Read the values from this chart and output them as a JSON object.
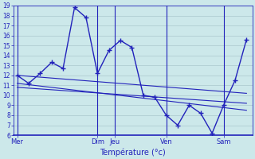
{
  "background_color": "#cce8ea",
  "grid_color": "#aac8cc",
  "line_color": "#2222bb",
  "ylabel": "Température (°c)",
  "ylim": [
    6,
    19
  ],
  "fig_width": 3.2,
  "fig_height": 2.0,
  "dpi": 100,
  "day_labels": [
    "Mer",
    "Dim",
    "Jeu",
    "Ven",
    "Sam"
  ],
  "day_x": [
    0,
    7,
    8.5,
    13,
    18
  ],
  "xlim": [
    -0.3,
    20.5
  ],
  "main_x": [
    0,
    1,
    2,
    3,
    4,
    5,
    6,
    7,
    8,
    9,
    10,
    11,
    12,
    13,
    14,
    15,
    16,
    17,
    18,
    19,
    20
  ],
  "main_y": [
    12,
    11.2,
    12.2,
    13.3,
    12.7,
    18.8,
    17.8,
    12.2,
    14.5,
    15.5,
    14.8,
    10.0,
    9.8,
    8.0,
    7.0,
    9.0,
    8.2,
    6.2,
    9.0,
    11.5,
    15.6
  ],
  "trend1_x": [
    0,
    20
  ],
  "trend1_y": [
    12.0,
    10.2
  ],
  "trend2_x": [
    0,
    20
  ],
  "trend2_y": [
    11.2,
    8.5
  ],
  "trend3_x": [
    0,
    20
  ],
  "trend3_y": [
    10.8,
    9.2
  ]
}
